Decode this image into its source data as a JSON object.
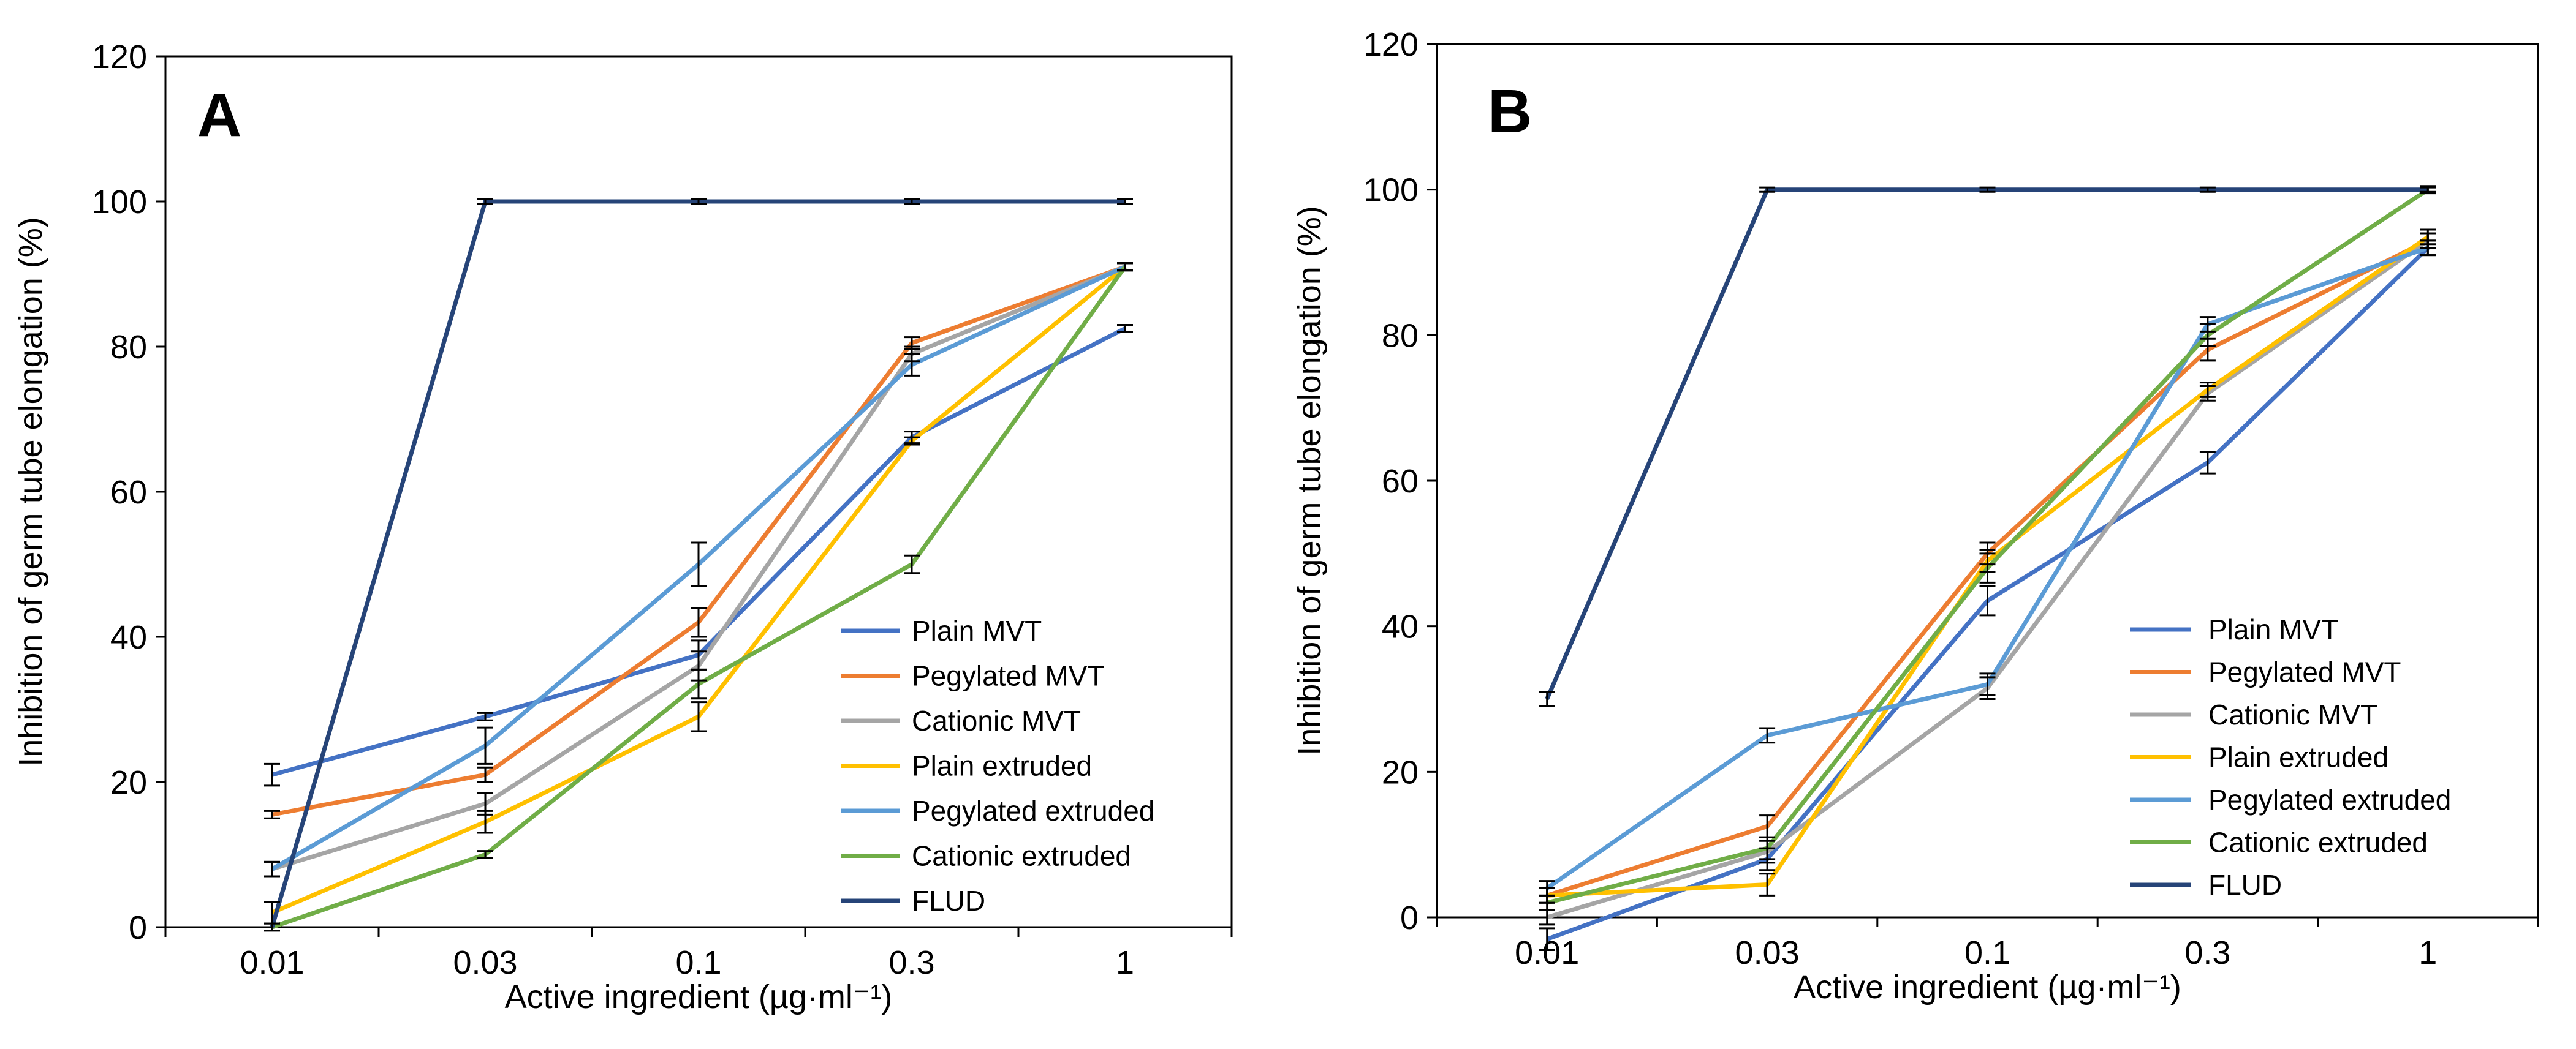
{
  "chart_data": [
    {
      "type": "line",
      "panel_label": "A",
      "categories": [
        "0.01",
        "0.03",
        "0.1",
        "0.3",
        "1"
      ],
      "xlabel": "Active ingredient (µg·ml⁻¹)",
      "ylabel": "Inhibition of germ tube elongation (%)",
      "ylim": [
        0,
        120
      ],
      "yticks": [
        "0",
        "20",
        "40",
        "60",
        "80",
        "100",
        "120"
      ],
      "legend_position": "bottom-right",
      "series": [
        {
          "name": "Plain MVT",
          "color": "#4472C4",
          "values": [
            21,
            29,
            37.5,
            67.5,
            82.5
          ],
          "err": [
            1.5,
            0.5,
            2,
            0.8,
            0.5
          ]
        },
        {
          "name": "Pegylated MVT",
          "color": "#ED7D31",
          "values": [
            15.5,
            21,
            42,
            80.5,
            91
          ],
          "err": [
            0.5,
            1,
            2,
            0.8,
            0.5
          ]
        },
        {
          "name": "Cationic MVT",
          "color": "#A5A5A5",
          "values": [
            8,
            17,
            36,
            79,
            91
          ],
          "err": [
            1,
            1.5,
            2,
            1,
            0.5
          ]
        },
        {
          "name": "Plain extruded",
          "color": "#FFC000",
          "values": [
            2,
            14.5,
            29,
            67,
            91
          ],
          "err": [
            1.5,
            1.5,
            2,
            0.5,
            0.5
          ]
        },
        {
          "name": "Pegylated extruded",
          "color": "#5B9BD5",
          "values": [
            8,
            25,
            50,
            77.5,
            91
          ],
          "err": [
            1,
            2.5,
            3,
            1.5,
            0.5
          ]
        },
        {
          "name": "Cationic extruded",
          "color": "#70AD47",
          "values": [
            0,
            10,
            33.5,
            50,
            91
          ],
          "err": [
            0.5,
            0.5,
            2,
            1.2,
            0.5
          ]
        },
        {
          "name": "FLUD",
          "color": "#264478",
          "values": [
            0,
            100,
            100,
            100,
            100
          ],
          "err": [
            0,
            0.3,
            0.3,
            0.3,
            0.3
          ]
        }
      ]
    },
    {
      "type": "line",
      "panel_label": "B",
      "categories": [
        "0.01",
        "0.03",
        "0.1",
        "0.3",
        "1"
      ],
      "xlabel": "Active ingredient (µg·ml⁻¹)",
      "ylabel": "Inhibition of germ tube elongation (%)",
      "ylim": [
        0,
        120
      ],
      "yticks": [
        "0",
        "20",
        "40",
        "60",
        "80",
        "100",
        "120"
      ],
      "legend_position": "bottom-right",
      "series": [
        {
          "name": "Plain MVT",
          "color": "#4472C4",
          "values": [
            -3,
            8,
            43.5,
            62.5,
            92
          ],
          "err": [
            1.5,
            1.5,
            2,
            1.5,
            1
          ]
        },
        {
          "name": "Pegylated MVT",
          "color": "#ED7D31",
          "values": [
            3,
            12.5,
            50,
            78,
            93
          ],
          "err": [
            1,
            1.5,
            1.5,
            1.5,
            1
          ]
        },
        {
          "name": "Cationic MVT",
          "color": "#A5A5A5",
          "values": [
            0,
            9,
            31.5,
            72,
            93
          ],
          "err": [
            1,
            1.5,
            1.5,
            1,
            1
          ]
        },
        {
          "name": "Plain extruded",
          "color": "#FFC000",
          "values": [
            3,
            4.5,
            49,
            72.5,
            93.5
          ],
          "err": [
            1,
            1.5,
            1.5,
            1,
            1
          ]
        },
        {
          "name": "Pegylated extruded",
          "color": "#5B9BD5",
          "values": [
            4,
            25,
            32,
            81.5,
            92
          ],
          "err": [
            1,
            1,
            1.5,
            1,
            1
          ]
        },
        {
          "name": "Cationic extruded",
          "color": "#70AD47",
          "values": [
            2,
            9.5,
            48,
            80,
            100
          ],
          "err": [
            1,
            1.5,
            2,
            1.5,
            0.5
          ]
        },
        {
          "name": "FLUD",
          "color": "#264478",
          "values": [
            30,
            100,
            100,
            100,
            100
          ],
          "err": [
            1,
            0.3,
            0.3,
            0.3,
            0.3
          ]
        }
      ]
    }
  ]
}
